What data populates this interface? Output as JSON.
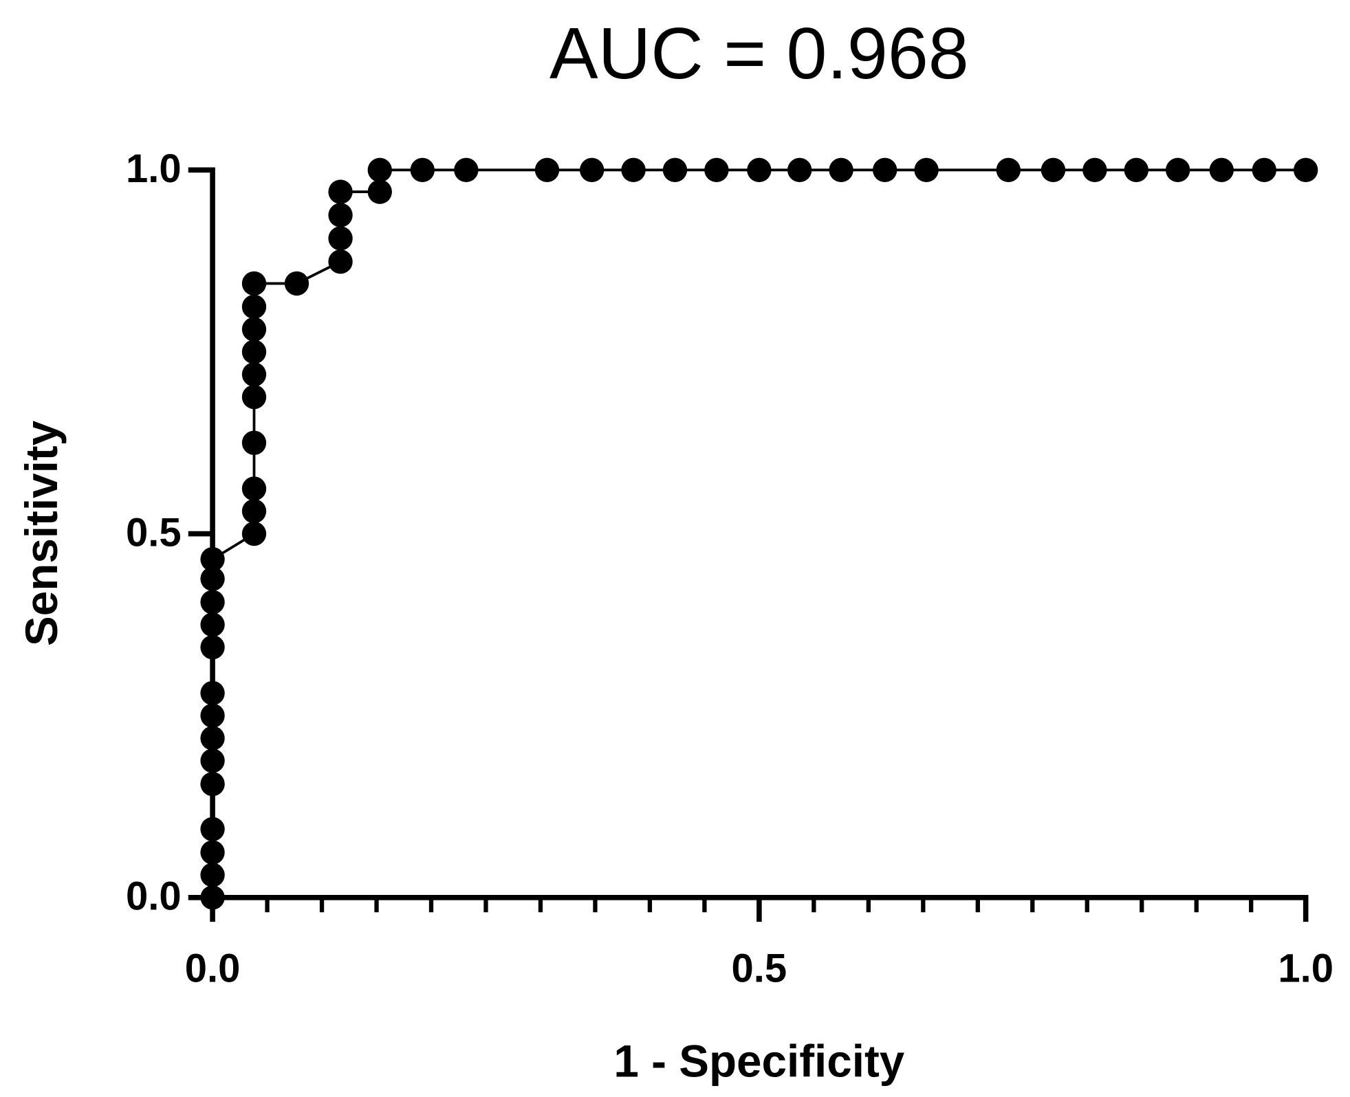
{
  "chart_data": {
    "type": "line",
    "title": "AUC = 0.968",
    "x_label": "1 - Specificity",
    "y_label": "Sensitivity",
    "x": [
      0,
      0,
      0,
      0,
      0,
      0,
      0,
      0,
      0,
      0,
      0,
      0,
      0,
      0,
      0.038,
      0.038,
      0.038,
      0.038,
      0.038,
      0.038,
      0.038,
      0.038,
      0.038,
      0.038,
      0.077,
      0.117,
      0.117,
      0.117,
      0.117,
      0.153,
      0.153,
      0.192,
      0.232,
      0.306,
      0.347,
      0.385,
      0.423,
      0.461,
      0.5,
      0.537,
      0.575,
      0.615,
      0.653,
      0.728,
      0.769,
      0.807,
      0.845,
      0.883,
      0.923,
      0.962,
      1.0
    ],
    "values": [
      0,
      0.031,
      0.062,
      0.094,
      0.156,
      0.188,
      0.219,
      0.25,
      0.281,
      0.344,
      0.375,
      0.406,
      0.438,
      0.465,
      0.5,
      0.531,
      0.562,
      0.625,
      0.688,
      0.719,
      0.75,
      0.781,
      0.812,
      0.844,
      0.844,
      0.874,
      0.906,
      0.938,
      0.97,
      0.97,
      1.0,
      1.0,
      1.0,
      1.0,
      1.0,
      1.0,
      1.0,
      1.0,
      1.0,
      1.0,
      1.0,
      1.0,
      1.0,
      1.0,
      1.0,
      1.0,
      1.0,
      1.0,
      1.0,
      1.0,
      1.0
    ],
    "color": "#000000",
    "xlim": [
      0,
      1
    ],
    "ylim": [
      0,
      1
    ],
    "xticks": [
      {
        "value": 0,
        "label": "0.0"
      },
      {
        "value": 0.5,
        "label": "0.5"
      },
      {
        "value": 1,
        "label": "1.0"
      }
    ],
    "xminorticks": [
      0.05,
      0.1,
      0.15,
      0.2,
      0.25,
      0.3,
      0.35,
      0.4,
      0.45,
      0.55,
      0.6,
      0.65,
      0.7,
      0.75,
      0.8,
      0.85,
      0.9,
      0.95
    ],
    "yticks": [
      {
        "value": 0,
        "label": "0.0"
      },
      {
        "value": 0.5,
        "label": "0.5"
      },
      {
        "value": 1,
        "label": "1.0"
      }
    ],
    "grid": false
  }
}
